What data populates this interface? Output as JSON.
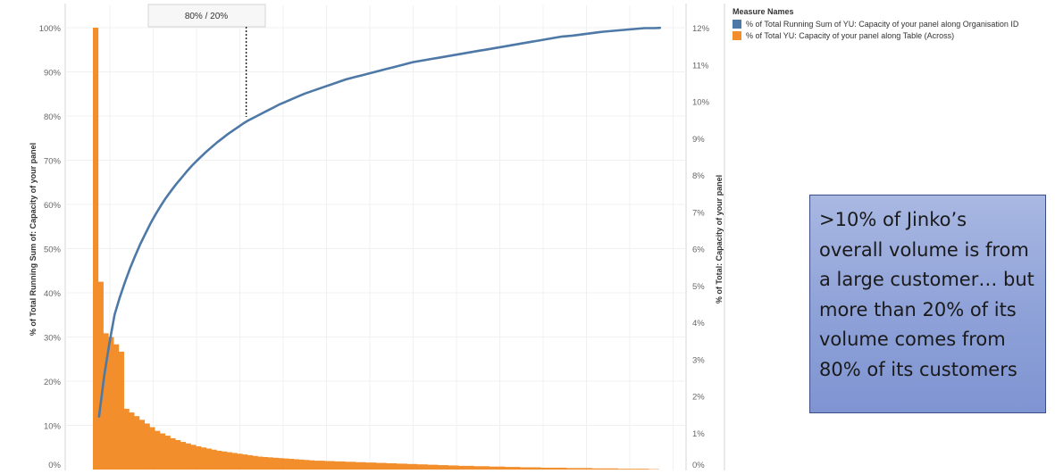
{
  "chart_data": {
    "type": "bar+line",
    "annotation_label": "80% / 20%",
    "annotation_x_index": 29,
    "left_axis": {
      "title": "% of Total Running Sum of: Capacity of your panel",
      "ticks": [
        "0%",
        "10%",
        "20%",
        "30%",
        "40%",
        "50%",
        "60%",
        "70%",
        "80%",
        "90%",
        "100%"
      ],
      "ylim": [
        0,
        100
      ]
    },
    "right_axis": {
      "title": "% of Total: Capacity of your panel",
      "ticks": [
        "0%",
        "1%",
        "2%",
        "3%",
        "4%",
        "5%",
        "6%",
        "7%",
        "8%",
        "9%",
        "10%",
        "11%",
        "12%"
      ],
      "ylim": [
        0,
        12
      ]
    },
    "grid": true,
    "legend_position": "top-right",
    "legend": {
      "title": "Measure Names",
      "items": [
        {
          "label": "% of Total Running Sum of YU: Capacity of your panel along Organisation ID",
          "color": "#4e79a7"
        },
        {
          "label": "% of Total YU: Capacity of your panel along Table (Across)",
          "color": "#f28e2b"
        }
      ]
    },
    "series": [
      {
        "name": "% of Total Running Sum of YU: Capacity of your panel along Organisation ID",
        "type": "line",
        "axis": "left",
        "color": "#4e79a7",
        "values": [
          12,
          21.3,
          28.5,
          35,
          38.9,
          42.3,
          45.5,
          48.3,
          51,
          53.4,
          55.7,
          57.8,
          59.7,
          61.5,
          63.1,
          64.6,
          66,
          67.4,
          68.7,
          69.9,
          71,
          72.1,
          73.1,
          74.1,
          75,
          75.9,
          76.7,
          77.5,
          78.3,
          79,
          79.6,
          80.2,
          80.8,
          81.4,
          82,
          82.6,
          83.1,
          83.6,
          84.1,
          84.6,
          85.1,
          85.5,
          85.9,
          86.3,
          86.7,
          87.1,
          87.5,
          87.9,
          88.3,
          88.6,
          88.9,
          89.2,
          89.5,
          89.8,
          90.1,
          90.4,
          90.7,
          91,
          91.3,
          91.6,
          91.9,
          92.2,
          92.4,
          92.6,
          92.8,
          93,
          93.2,
          93.4,
          93.6,
          93.8,
          94,
          94.2,
          94.4,
          94.6,
          94.8,
          95,
          95.2,
          95.4,
          95.6,
          95.8,
          96,
          96.2,
          96.4,
          96.6,
          96.8,
          97,
          97.2,
          97.4,
          97.6,
          97.8,
          98,
          98.1,
          98.2,
          98.35,
          98.5,
          98.65,
          98.8,
          98.95,
          99.1,
          99.2,
          99.3,
          99.4,
          99.5,
          99.6,
          99.7,
          99.8,
          99.9,
          99.9,
          99.9,
          99.95
        ]
      },
      {
        "name": "% of Total YU: Capacity of your panel along Table (Across)",
        "type": "bar",
        "axis": "right",
        "color": "#f28e2b",
        "values": [
          12,
          5.1,
          3.7,
          3.6,
          3.4,
          3.2,
          1.65,
          1.55,
          1.45,
          1.35,
          1.25,
          1.15,
          1.05,
          0.98,
          0.92,
          0.85,
          0.8,
          0.75,
          0.71,
          0.67,
          0.63,
          0.6,
          0.57,
          0.54,
          0.51,
          0.49,
          0.47,
          0.45,
          0.43,
          0.41,
          0.39,
          0.37,
          0.35,
          0.34,
          0.33,
          0.32,
          0.31,
          0.3,
          0.29,
          0.28,
          0.27,
          0.26,
          0.25,
          0.24,
          0.24,
          0.23,
          0.23,
          0.22,
          0.22,
          0.21,
          0.21,
          0.2,
          0.2,
          0.19,
          0.19,
          0.18,
          0.18,
          0.17,
          0.17,
          0.16,
          0.16,
          0.15,
          0.15,
          0.14,
          0.14,
          0.13,
          0.13,
          0.12,
          0.12,
          0.11,
          0.11,
          0.1,
          0.1,
          0.1,
          0.09,
          0.09,
          0.09,
          0.08,
          0.08,
          0.08,
          0.07,
          0.07,
          0.07,
          0.06,
          0.06,
          0.06,
          0.06,
          0.05,
          0.05,
          0.05,
          0.05,
          0.05,
          0.04,
          0.04,
          0.04,
          0.04,
          0.04,
          0.03,
          0.03,
          0.03,
          0.03,
          0.03,
          0.02,
          0.02,
          0.02,
          0.02,
          0.02,
          0.02,
          0.01,
          0.01
        ]
      }
    ]
  },
  "callout": {
    "text": ">10% of Jinko’s overall volume is from a large customer… but more than 20% of its volume comes from 80% of its customers"
  }
}
